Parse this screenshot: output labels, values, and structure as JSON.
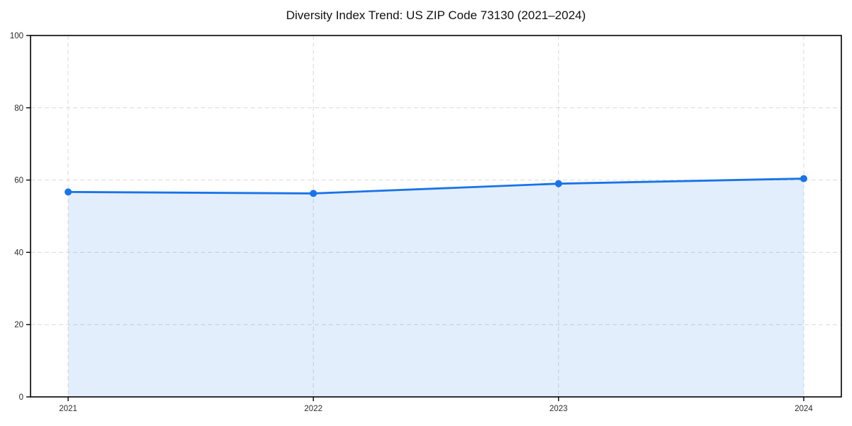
{
  "chart_data": {
    "type": "line",
    "title": "Diversity Index Trend: US ZIP Code 73130 (2021–2024)",
    "x": [
      "2021",
      "2022",
      "2023",
      "2024"
    ],
    "series": [
      {
        "name": "Diversity Index",
        "values": [
          56.7,
          56.3,
          59.0,
          60.4
        ]
      }
    ],
    "xlabel": "",
    "ylabel": "",
    "ylim": [
      0,
      100
    ],
    "yticks": [
      0,
      20,
      40,
      60,
      80,
      100
    ],
    "ytick_labels": [
      "0",
      "20",
      "40",
      "60",
      "80",
      "100"
    ],
    "grid": true,
    "grid_style": "dashed",
    "legend": false,
    "area_fill": true,
    "marker": "circle",
    "colors": {
      "line": "#1a73e8",
      "fill": "#1a73e8",
      "fill_opacity": 0.12,
      "grid": "#d9d9d9",
      "spine": "#000000",
      "tick_label": "#2b2b2b",
      "title": "#111111",
      "background": "#ffffff"
    }
  }
}
